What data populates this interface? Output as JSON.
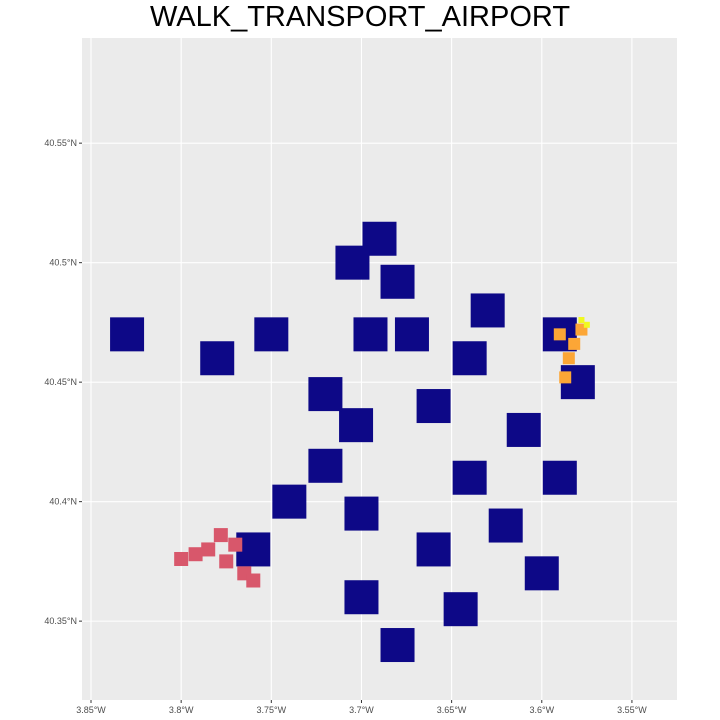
{
  "title": "WALK_TRANSPORT_AIRPORT",
  "colors": {
    "panel_background": "#ebebeb",
    "grid": "#ffffff",
    "tick_text": "#4d4d4d",
    "low_value": "#0d0887",
    "mid_value": "#d8576b",
    "high_value": "#fca636",
    "top_value": "#f0f921"
  },
  "chart_data": {
    "type": "heatmap",
    "title": "WALK_TRANSPORT_AIRPORT",
    "xlabel": "",
    "ylabel": "",
    "xlim": [
      -3.855,
      -3.525
    ],
    "ylim": [
      40.317,
      40.594
    ],
    "x_ticks": [
      {
        "value": -3.85,
        "label": "3.85°W"
      },
      {
        "value": -3.8,
        "label": "3.8°W"
      },
      {
        "value": -3.75,
        "label": "3.75°W"
      },
      {
        "value": -3.7,
        "label": "3.7°W"
      },
      {
        "value": -3.65,
        "label": "3.65°W"
      },
      {
        "value": -3.6,
        "label": "3.6°W"
      },
      {
        "value": -3.55,
        "label": "3.55°W"
      }
    ],
    "y_ticks": [
      {
        "value": 40.35,
        "label": "40.35°N"
      },
      {
        "value": 40.4,
        "label": "40.4°N"
      },
      {
        "value": 40.45,
        "label": "40.45°N"
      },
      {
        "value": 40.5,
        "label": "40.5°N"
      },
      {
        "value": 40.55,
        "label": "40.55°N"
      }
    ],
    "grid": true,
    "legend": "none",
    "regions": [
      {
        "level": "low",
        "color": "#0d0887",
        "cells": [
          [
            -3.703,
            40.432
          ],
          [
            -3.672,
            40.47
          ],
          [
            -3.66,
            40.44
          ],
          [
            -3.64,
            40.41
          ],
          [
            -3.7,
            40.395
          ],
          [
            -3.72,
            40.415
          ],
          [
            -3.68,
            40.492
          ],
          [
            -3.64,
            40.46
          ],
          [
            -3.61,
            40.43
          ],
          [
            -3.62,
            40.39
          ],
          [
            -3.66,
            40.38
          ],
          [
            -3.74,
            40.4
          ],
          [
            -3.76,
            40.38
          ],
          [
            -3.78,
            40.46
          ],
          [
            -3.75,
            40.47
          ],
          [
            -3.7,
            40.36
          ],
          [
            -3.68,
            40.34
          ],
          [
            -3.6,
            40.37
          ],
          [
            -3.83,
            40.47
          ],
          [
            -3.59,
            40.47
          ],
          [
            -3.58,
            40.45
          ],
          [
            -3.63,
            40.48
          ],
          [
            -3.69,
            40.51
          ],
          [
            -3.705,
            40.5
          ],
          [
            -3.645,
            40.355
          ],
          [
            -3.59,
            40.41
          ],
          [
            -3.72,
            40.445
          ],
          [
            -3.695,
            40.47
          ]
        ]
      },
      {
        "level": "mid",
        "color": "#d8576b",
        "cells": [
          [
            -3.785,
            40.38
          ],
          [
            -3.775,
            40.375
          ],
          [
            -3.77,
            40.382
          ],
          [
            -3.765,
            40.37
          ],
          [
            -3.792,
            40.378
          ],
          [
            -3.778,
            40.386
          ],
          [
            -3.76,
            40.367
          ],
          [
            -3.8,
            40.376
          ]
        ]
      },
      {
        "level": "high",
        "color": "#fca636",
        "cells": [
          [
            -3.59,
            40.47
          ],
          [
            -3.585,
            40.46
          ],
          [
            -3.587,
            40.452
          ],
          [
            -3.582,
            40.466
          ],
          [
            -3.578,
            40.472
          ]
        ]
      },
      {
        "level": "top",
        "color": "#f0f921",
        "cells": [
          [
            -3.578,
            40.476
          ],
          [
            -3.575,
            40.474
          ]
        ]
      }
    ]
  }
}
